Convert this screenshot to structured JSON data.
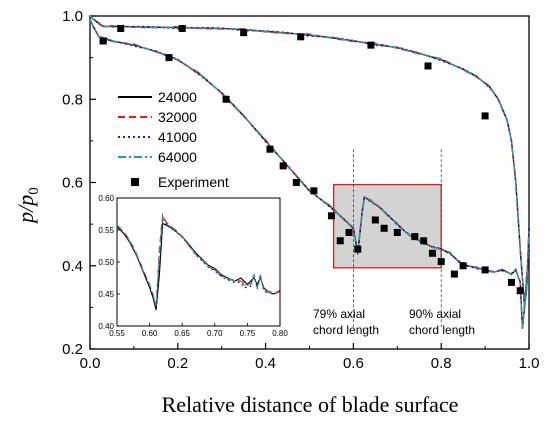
{
  "chart_data": {
    "type": "line",
    "xlabel": "Relative distance of blade surface",
    "ylabel_main": "p/p",
    "ylabel_sub": "0",
    "xlim": [
      0.0,
      1.0
    ],
    "ylim": [
      0.2,
      1.0
    ],
    "xticks": [
      "0.0",
      "0.2",
      "0.4",
      "0.6",
      "0.8",
      "1.0"
    ],
    "yticks": [
      "0.2",
      "0.4",
      "0.6",
      "0.8",
      "1.0"
    ],
    "legend_position": "left",
    "series": [
      {
        "name": "24000",
        "color": "#000000",
        "dash": "solid"
      },
      {
        "name": "32000",
        "color": "#e31a1c",
        "dash": "dashed"
      },
      {
        "name": "41000",
        "color": "#1f1fd0",
        "dash": "dotted"
      },
      {
        "name": "64000",
        "color": "#2a9d8f",
        "dash": "dashdot"
      }
    ],
    "pressure_side": {
      "x": [
        0.0,
        0.01,
        0.03,
        0.06,
        0.1,
        0.15,
        0.2,
        0.25,
        0.3,
        0.35,
        0.4,
        0.45,
        0.5,
        0.55,
        0.6,
        0.65,
        0.7,
        0.75,
        0.8,
        0.85,
        0.88,
        0.91,
        0.93,
        0.95,
        0.96,
        0.97,
        0.975,
        0.98,
        0.985,
        0.99,
        0.995,
        1.0
      ],
      "y": [
        1.0,
        0.99,
        0.975,
        0.975,
        0.974,
        0.973,
        0.972,
        0.971,
        0.97,
        0.967,
        0.963,
        0.959,
        0.954,
        0.948,
        0.94,
        0.932,
        0.924,
        0.91,
        0.895,
        0.872,
        0.855,
        0.83,
        0.8,
        0.75,
        0.7,
        0.6,
        0.52,
        0.44,
        0.37,
        0.3,
        0.35,
        0.49
      ]
    },
    "suction_side": {
      "x": [
        0.0,
        0.02,
        0.05,
        0.1,
        0.15,
        0.2,
        0.25,
        0.3,
        0.35,
        0.4,
        0.45,
        0.5,
        0.55,
        0.58,
        0.6,
        0.61,
        0.62,
        0.625,
        0.64,
        0.66,
        0.68,
        0.7,
        0.72,
        0.74,
        0.76,
        0.78,
        0.8,
        0.82,
        0.84,
        0.86,
        0.88,
        0.9,
        0.92,
        0.94,
        0.96,
        0.97,
        0.98,
        0.985,
        0.99,
        0.995,
        1.0
      ],
      "y": [
        0.99,
        0.95,
        0.94,
        0.93,
        0.915,
        0.895,
        0.86,
        0.815,
        0.76,
        0.7,
        0.64,
        0.58,
        0.54,
        0.51,
        0.49,
        0.43,
        0.53,
        0.565,
        0.555,
        0.54,
        0.52,
        0.5,
        0.48,
        0.465,
        0.455,
        0.445,
        0.44,
        0.43,
        0.41,
        0.4,
        0.395,
        0.39,
        0.385,
        0.39,
        0.38,
        0.39,
        0.36,
        0.25,
        0.3,
        0.38,
        0.38
      ]
    },
    "experiment": {
      "name": "Experiment",
      "x": [
        0.03,
        0.07,
        0.21,
        0.35,
        0.48,
        0.64,
        0.77,
        0.9,
        0.03,
        0.18,
        0.31,
        0.41,
        0.44,
        0.47,
        0.51,
        0.55,
        0.57,
        0.59,
        0.61,
        0.65,
        0.67,
        0.7,
        0.74,
        0.76,
        0.78,
        0.8,
        0.83,
        0.85,
        0.9,
        0.96,
        0.98
      ],
      "y": [
        0.94,
        0.97,
        0.97,
        0.96,
        0.95,
        0.93,
        0.88,
        0.76,
        0.94,
        0.9,
        0.8,
        0.68,
        0.64,
        0.6,
        0.58,
        0.52,
        0.46,
        0.48,
        0.44,
        0.51,
        0.49,
        0.48,
        0.47,
        0.46,
        0.43,
        0.41,
        0.38,
        0.4,
        0.39,
        0.36,
        0.34
      ]
    },
    "zoom_box": {
      "x": [
        0.555,
        0.8
      ],
      "y": [
        0.395,
        0.595
      ]
    },
    "reference_lines": [
      {
        "x": 0.6,
        "label_line1": "79% axial",
        "label_line2": "chord length"
      },
      {
        "x": 0.8,
        "label_line1": "90% axial",
        "label_line2": "chord length"
      }
    ],
    "inset": {
      "xlim": [
        0.55,
        0.8
      ],
      "ylim": [
        0.4,
        0.6
      ],
      "xticks": [
        "0.55",
        "0.60",
        "0.65",
        "0.70",
        "0.75",
        "0.80"
      ],
      "yticks": [
        "0.40",
        "0.45",
        "0.50",
        "0.55",
        "0.60"
      ],
      "x": [
        0.55,
        0.56,
        0.57,
        0.58,
        0.59,
        0.6,
        0.605,
        0.61,
        0.615,
        0.62,
        0.625,
        0.63,
        0.64,
        0.65,
        0.66,
        0.67,
        0.68,
        0.69,
        0.7,
        0.71,
        0.72,
        0.73,
        0.74,
        0.745,
        0.75,
        0.755,
        0.76,
        0.765,
        0.77,
        0.775,
        0.78,
        0.79,
        0.8
      ],
      "series_y": {
        "24000": [
          0.555,
          0.545,
          0.53,
          0.51,
          0.485,
          0.46,
          0.445,
          0.425,
          0.48,
          0.56,
          0.558,
          0.555,
          0.548,
          0.54,
          0.528,
          0.515,
          0.505,
          0.495,
          0.49,
          0.48,
          0.475,
          0.47,
          0.475,
          0.47,
          0.465,
          0.47,
          0.475,
          0.465,
          0.475,
          0.46,
          0.455,
          0.45,
          0.455
        ],
        "32000": [
          0.558,
          0.548,
          0.533,
          0.513,
          0.488,
          0.465,
          0.45,
          0.432,
          0.52,
          0.575,
          0.563,
          0.558,
          0.55,
          0.54,
          0.526,
          0.513,
          0.503,
          0.493,
          0.487,
          0.478,
          0.473,
          0.472,
          0.47,
          0.467,
          0.468,
          0.465,
          0.478,
          0.46,
          0.48,
          0.455,
          0.455,
          0.452,
          0.453
        ],
        "41000": [
          0.556,
          0.546,
          0.531,
          0.511,
          0.486,
          0.463,
          0.448,
          0.43,
          0.5,
          0.568,
          0.56,
          0.556,
          0.548,
          0.538,
          0.526,
          0.512,
          0.502,
          0.492,
          0.486,
          0.477,
          0.472,
          0.468,
          0.468,
          0.46,
          0.46,
          0.462,
          0.482,
          0.458,
          0.478,
          0.455,
          0.452,
          0.45,
          0.452
        ],
        "64000": [
          0.557,
          0.547,
          0.532,
          0.512,
          0.487,
          0.464,
          0.449,
          0.431,
          0.51,
          0.572,
          0.562,
          0.557,
          0.549,
          0.539,
          0.527,
          0.513,
          0.504,
          0.494,
          0.488,
          0.479,
          0.474,
          0.47,
          0.469,
          0.464,
          0.464,
          0.463,
          0.48,
          0.459,
          0.479,
          0.456,
          0.453,
          0.451,
          0.453
        ]
      }
    },
    "legend_marker_label": "Experiment"
  }
}
